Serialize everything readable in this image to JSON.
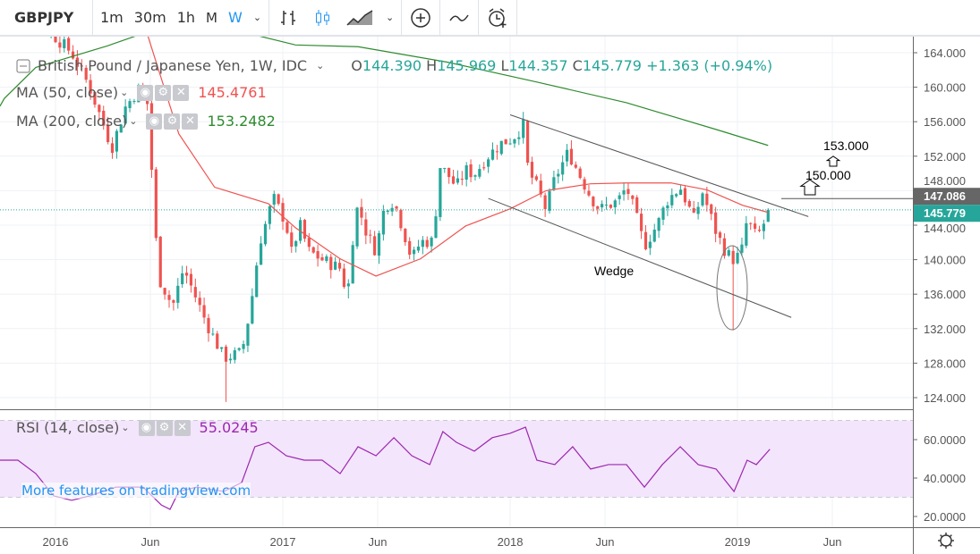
{
  "toolbar": {
    "symbol": "GBPJPY",
    "intervals": [
      "1m",
      "30m",
      "1h",
      "M",
      "W"
    ],
    "active_interval": "W",
    "icons": [
      "bar-chart-icon",
      "candlestick-icon",
      "area-chart-icon",
      "add-indicator-icon",
      "compare-icon",
      "alert-icon"
    ]
  },
  "legend": {
    "title": "British Pound / Japanese Yen, 1W, IDC",
    "o_label": "O",
    "o": "144.390",
    "h_label": "H",
    "h": "145.969",
    "l_label": "L",
    "l": "144.357",
    "c_label": "C",
    "c": "145.779",
    "change": "+1.363 (+0.94%)",
    "ma50_label": "MA (50, close)",
    "ma50_value": "145.4761",
    "ma200_label": "MA (200, close)",
    "ma200_value": "153.2482",
    "rsi_label": "RSI (14, close)",
    "rsi_value": "55.0245"
  },
  "watermark": "More features on tradingview.com",
  "colors": {
    "up": "#26a69a",
    "down": "#ef5350",
    "ma50": "#ef5350",
    "ma200": "#2e8b2e",
    "rsi": "#9c27b0",
    "accent": "#2196f3"
  },
  "chart_data": {
    "type": "candlestick",
    "title": "British Pound / Japanese Yen, 1W, IDC",
    "x_unit": "weeks since 2016-01-01",
    "price_ticks": [
      "164.000",
      "160.000",
      "156.000",
      "152.000",
      "148.000",
      "144.000",
      "140.000",
      "136.000",
      "132.000",
      "128.000",
      "124.000"
    ],
    "rsi_ticks": [
      "60.0000",
      "40.0000",
      "20.0000"
    ],
    "time_labels": [
      {
        "w": 0,
        "label": "2016"
      },
      {
        "w": 21.7,
        "label": "Jun"
      },
      {
        "w": 52,
        "label": "2017"
      },
      {
        "w": 73.7,
        "label": "Jun"
      },
      {
        "w": 104,
        "label": "2018"
      },
      {
        "w": 125.7,
        "label": "Jun"
      },
      {
        "w": 156,
        "label": "2019"
      },
      {
        "w": 177.7,
        "label": "Jun"
      }
    ],
    "ylim": [
      122.5,
      165.5
    ],
    "close_keypoints": [
      [
        -12.7,
        172
      ],
      [
        -4.5,
        168
      ],
      [
        3.7,
        164
      ],
      [
        7.8,
        160
      ],
      [
        12.9,
        153
      ],
      [
        16,
        157.7
      ],
      [
        19,
        159.8
      ],
      [
        21.1,
        158
      ],
      [
        23.5,
        138
      ],
      [
        26.8,
        134.6
      ],
      [
        29.3,
        139
      ],
      [
        34.4,
        132.8
      ],
      [
        38.5,
        128.6
      ],
      [
        42.6,
        129.2
      ],
      [
        44.6,
        134.4
      ],
      [
        46.7,
        142
      ],
      [
        48.7,
        145.2
      ],
      [
        49.7,
        147.3
      ],
      [
        52.8,
        144.2
      ],
      [
        53.8,
        140.5
      ],
      [
        55.9,
        144
      ],
      [
        57.9,
        141
      ],
      [
        61,
        140
      ],
      [
        65.1,
        139
      ],
      [
        66.7,
        135.9
      ],
      [
        67.6,
        139.5
      ],
      [
        68.2,
        144
      ],
      [
        69.2,
        146.3
      ],
      [
        71.2,
        143
      ],
      [
        73.3,
        141
      ],
      [
        75.3,
        146.3
      ],
      [
        77.4,
        146.8
      ],
      [
        79.4,
        143.7
      ],
      [
        81.5,
        140
      ],
      [
        83.5,
        142.1
      ],
      [
        86.6,
        142.1
      ],
      [
        87.6,
        151
      ],
      [
        89.7,
        149.9
      ],
      [
        91.7,
        148.4
      ],
      [
        93.8,
        150.4
      ],
      [
        95.8,
        149.9
      ],
      [
        98.9,
        152
      ],
      [
        101.9,
        153.5
      ],
      [
        104.4,
        154
      ],
      [
        107.1,
        155.6
      ],
      [
        108.1,
        150.4
      ],
      [
        110.1,
        148.4
      ],
      [
        112.2,
        145.8
      ],
      [
        114.2,
        149.4
      ],
      [
        117.3,
        152.5
      ],
      [
        119.3,
        150.4
      ],
      [
        122.4,
        147.3
      ],
      [
        124.5,
        145.8
      ],
      [
        128.6,
        146.8
      ],
      [
        130.6,
        148.4
      ],
      [
        132.7,
        145.2
      ],
      [
        134.7,
        141.6
      ],
      [
        137.8,
        144.2
      ],
      [
        139.8,
        146.8
      ],
      [
        142.9,
        148.4
      ],
      [
        146,
        144.7
      ],
      [
        148,
        147.8
      ],
      [
        151.1,
        143.2
      ],
      [
        153.1,
        141.1
      ],
      [
        154.8,
        140
      ],
      [
        156.8,
        140.6
      ],
      [
        158.2,
        144.7
      ],
      [
        160.3,
        142.6
      ],
      [
        161.7,
        143.7
      ],
      [
        163,
        145.779
      ]
    ],
    "special_lows": [
      [
        39,
        123.5
      ],
      [
        67,
        135.5
      ],
      [
        155,
        131.8
      ]
    ],
    "ma50": [
      [
        21.1,
        166
      ],
      [
        28.2,
        154.6
      ],
      [
        36.4,
        148.4
      ],
      [
        48.7,
        146.5
      ],
      [
        54.9,
        143.7
      ],
      [
        65.1,
        140.1
      ],
      [
        73.3,
        138.1
      ],
      [
        83.5,
        140.1
      ],
      [
        93.8,
        143.9
      ],
      [
        104,
        145.9
      ],
      [
        112.2,
        148
      ],
      [
        122.4,
        148.8
      ],
      [
        130.6,
        148.9
      ],
      [
        140.8,
        148.9
      ],
      [
        149,
        148.1
      ],
      [
        157.2,
        146.3
      ],
      [
        163,
        145.4761
      ]
    ],
    "ma200": [
      [
        -12.7,
        157.8
      ],
      [
        -11.7,
        158.7
      ],
      [
        -4.5,
        162.3
      ],
      [
        11.9,
        164.8
      ],
      [
        30,
        168
      ],
      [
        54.9,
        164.9
      ],
      [
        69.2,
        164.7
      ],
      [
        89.7,
        162.9
      ],
      [
        110.1,
        160.6
      ],
      [
        130.6,
        158.2
      ],
      [
        151.1,
        155.1
      ],
      [
        163,
        153.2482
      ]
    ],
    "rsi": [
      [
        -12.7,
        49.3
      ],
      [
        -8.6,
        49.3
      ],
      [
        -4.5,
        42.3
      ],
      [
        -0.4,
        30.7
      ],
      [
        3.7,
        28.4
      ],
      [
        7.8,
        30.7
      ],
      [
        13.9,
        35.3
      ],
      [
        20,
        35.3
      ],
      [
        24.2,
        26
      ],
      [
        26.2,
        23.7
      ],
      [
        28.2,
        33
      ],
      [
        32.3,
        35.3
      ],
      [
        38.5,
        33
      ],
      [
        42.6,
        37.7
      ],
      [
        45.6,
        56.3
      ],
      [
        48.7,
        58.6
      ],
      [
        52.8,
        51.6
      ],
      [
        56.9,
        49.3
      ],
      [
        61,
        49.3
      ],
      [
        65.1,
        42.3
      ],
      [
        69.2,
        56.3
      ],
      [
        73.3,
        51.6
      ],
      [
        77.4,
        61
      ],
      [
        81.5,
        51.6
      ],
      [
        85.6,
        47
      ],
      [
        88.6,
        64.2
      ],
      [
        91.7,
        58.6
      ],
      [
        95.8,
        54
      ],
      [
        99.9,
        61
      ],
      [
        104,
        63.3
      ],
      [
        107.5,
        66.5
      ],
      [
        110.1,
        49.3
      ],
      [
        114.2,
        47
      ],
      [
        118.3,
        56.3
      ],
      [
        122.4,
        44.7
      ],
      [
        126.5,
        47
      ],
      [
        130.6,
        47
      ],
      [
        134.7,
        35.3
      ],
      [
        138.8,
        47
      ],
      [
        142.9,
        56.3
      ],
      [
        147,
        47
      ],
      [
        151.1,
        44.7
      ],
      [
        155.2,
        33
      ],
      [
        158.2,
        49.3
      ],
      [
        160.3,
        47
      ],
      [
        163.4,
        55
      ]
    ],
    "rsi_band": [
      30,
      70
    ],
    "last_price": "145.779",
    "level_line": {
      "price": 147.086,
      "label": "147.086"
    },
    "wedge": {
      "label": "Wedge",
      "upper": [
        [
          104,
          156.8
        ],
        [
          172.2,
          145
        ]
      ],
      "lower": [
        [
          99,
          147.1
        ],
        [
          168.3,
          133.3
        ]
      ]
    },
    "targets": [
      {
        "price": 150,
        "label": "150.000"
      },
      {
        "price": 153,
        "label": "153.000"
      }
    ]
  }
}
